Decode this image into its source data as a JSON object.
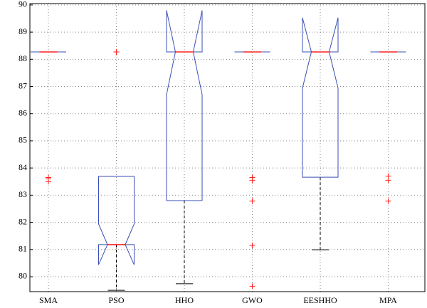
{
  "chart_data": {
    "type": "box",
    "categories": [
      "SMA",
      "PSO",
      "HHO",
      "GWO",
      "EESHHO",
      "MPA"
    ],
    "boxes": [
      {
        "min": 88.27,
        "q1": 88.27,
        "median": 88.27,
        "q3": 88.27,
        "max": 88.27,
        "notch_low": 88.27,
        "notch_high": 88.27,
        "outliers": [
          83.65,
          83.6,
          83.5
        ]
      },
      {
        "min": 79.5,
        "q1": 81.18,
        "median": 81.18,
        "q3": 83.69,
        "max": 83.69,
        "notch_low": 80.44,
        "notch_high": 81.94,
        "outliers": [
          88.27
        ]
      },
      {
        "min": 79.74,
        "q1": 82.8,
        "median": 88.27,
        "q3": 88.27,
        "max": 88.27,
        "notch_low": 86.7,
        "notch_high": 89.8,
        "outliers": []
      },
      {
        "min": 88.27,
        "q1": 88.27,
        "median": 88.27,
        "q3": 88.27,
        "max": 88.27,
        "notch_low": 88.27,
        "notch_high": 88.27,
        "outliers": [
          83.65,
          83.55,
          82.78,
          81.15,
          79.65
        ]
      },
      {
        "min": 80.99,
        "q1": 83.66,
        "median": 88.27,
        "q3": 88.27,
        "max": 88.27,
        "notch_low": 86.94,
        "notch_high": 89.53,
        "outliers": []
      },
      {
        "min": 88.27,
        "q1": 88.27,
        "median": 88.27,
        "q3": 88.27,
        "max": 88.27,
        "notch_low": 88.27,
        "notch_high": 88.27,
        "outliers": [
          83.7,
          83.55,
          82.78
        ]
      }
    ],
    "box_color": "#3a4fb5",
    "median_color": "#ff2020",
    "outlier_color": "#ff2020",
    "whisker_color": "#000000",
    "ylim": [
      79.45,
      90.05
    ],
    "yticks": [
      80,
      81,
      82,
      83,
      84,
      85,
      86,
      87,
      88,
      89,
      90
    ],
    "grid": true
  }
}
